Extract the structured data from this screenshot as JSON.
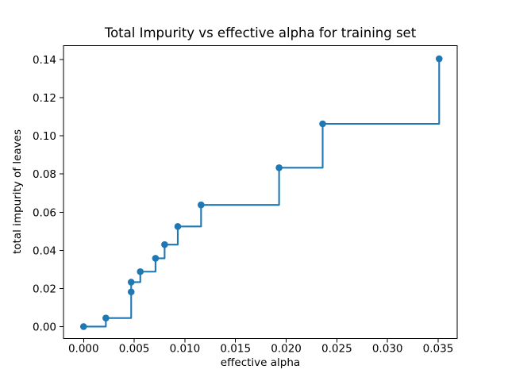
{
  "chart_data": {
    "type": "line",
    "drawstyle": "steps-post",
    "title": "Total Impurity vs effective alpha for training set",
    "xlabel": "effective alpha",
    "ylabel": "total impurity of leaves",
    "grid": false,
    "legend": null,
    "xlim": [
      -0.00198,
      0.03688
    ],
    "ylim": [
      -0.00625,
      0.14729
    ],
    "x_ticks": [
      0.0,
      0.005,
      0.01,
      0.015,
      0.02,
      0.025,
      0.03,
      0.035
    ],
    "x_tick_labels": [
      "0.000",
      "0.005",
      "0.010",
      "0.015",
      "0.020",
      "0.025",
      "0.030",
      "0.035"
    ],
    "y_ticks": [
      0.0,
      0.02,
      0.04,
      0.06,
      0.08,
      0.1,
      0.12,
      0.14
    ],
    "y_tick_labels": [
      "0.00",
      "0.02",
      "0.04",
      "0.06",
      "0.08",
      "0.10",
      "0.12",
      "0.14"
    ],
    "series": [
      {
        "name": "total impurity of leaves",
        "color": "#1f77b4",
        "marker": "circle",
        "x": [
          0.0,
          0.0022,
          0.0047,
          0.0047,
          0.0056,
          0.0071,
          0.008,
          0.0093,
          0.0116,
          0.0193,
          0.0236,
          0.0351
        ],
        "y": [
          0.0,
          0.0045,
          0.0182,
          0.0233,
          0.0288,
          0.0358,
          0.043,
          0.0525,
          0.0638,
          0.0833,
          0.1063,
          0.1404
        ]
      }
    ]
  },
  "style": {
    "line_color": "#1f77b4",
    "spine_color": "#000000",
    "text_color": "#000000",
    "background_color": "#ffffff"
  }
}
